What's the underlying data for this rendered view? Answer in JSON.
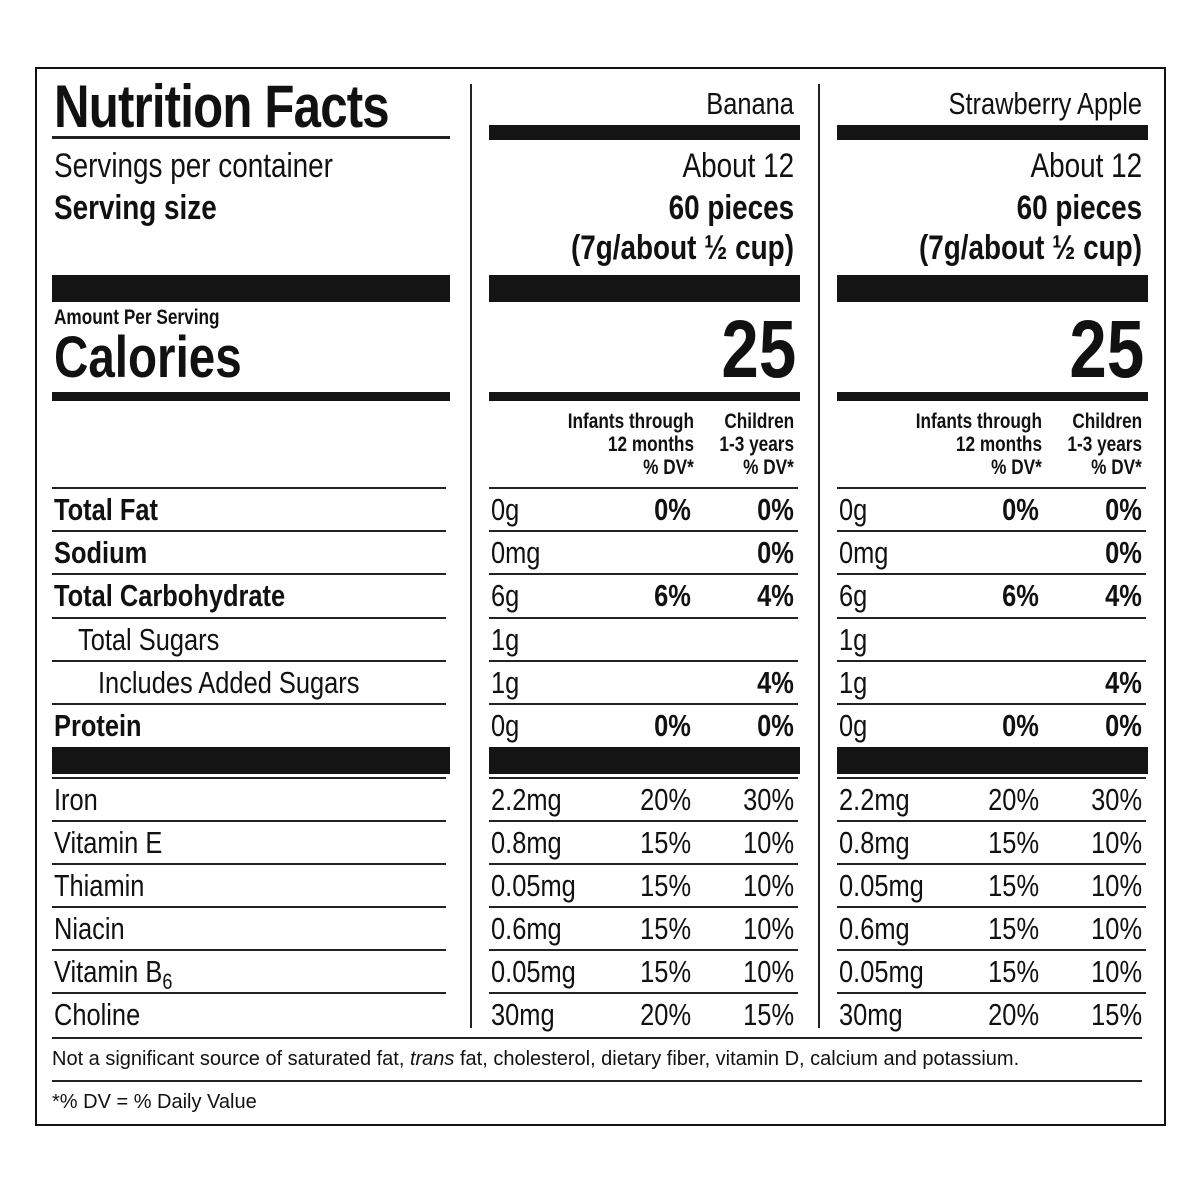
{
  "title": "Nutrition Facts",
  "servings_label": "Servings per container",
  "serving_size_label": "Serving size",
  "amount_per_serving": "Amount Per Serving",
  "calories_label": "Calories",
  "dv_headers": {
    "infants_line1": "Infants through",
    "infants_line2": "12 months",
    "children_line1": "Children",
    "children_line2": "1-3 years",
    "dv": "% DV*"
  },
  "nutrient_labels": {
    "total_fat": "Total Fat",
    "sodium": "Sodium",
    "total_carbohydrate": "Total Carbohydrate",
    "total_sugars": "Total Sugars",
    "added_sugars": "Includes Added Sugars",
    "protein": "Protein",
    "iron": "Iron",
    "vitamin_e": "Vitamin E",
    "thiamin": "Thiamin",
    "niacin": "Niacin",
    "vitamin_b6": "Vitamin B",
    "vitamin_b6_sub": "6",
    "choline": "Choline"
  },
  "products": [
    {
      "name": "Banana",
      "servings": "About 12",
      "serving_size_line1": "60 pieces",
      "serving_size_line2": "(7g/about ½ cup)",
      "calories": "25",
      "rows": {
        "total_fat": [
          "0g",
          "0%",
          "0%"
        ],
        "sodium": [
          "0mg",
          "",
          "0%"
        ],
        "total_carbohydrate": [
          "6g",
          "6%",
          "4%"
        ],
        "total_sugars": [
          "1g",
          "",
          ""
        ],
        "added_sugars": [
          "1g",
          "",
          "4%"
        ],
        "protein": [
          "0g",
          "0%",
          "0%"
        ],
        "iron": [
          "2.2mg",
          "20%",
          "30%"
        ],
        "vitamin_e": [
          "0.8mg",
          "15%",
          "10%"
        ],
        "thiamin": [
          "0.05mg",
          "15%",
          "10%"
        ],
        "niacin": [
          "0.6mg",
          "15%",
          "10%"
        ],
        "vitamin_b6": [
          "0.05mg",
          "15%",
          "10%"
        ],
        "choline": [
          "30mg",
          "20%",
          "15%"
        ]
      }
    },
    {
      "name": "Strawberry Apple",
      "servings": "About 12",
      "serving_size_line1": "60 pieces",
      "serving_size_line2": "(7g/about ½ cup)",
      "calories": "25",
      "rows": {
        "total_fat": [
          "0g",
          "0%",
          "0%"
        ],
        "sodium": [
          "0mg",
          "",
          "0%"
        ],
        "total_carbohydrate": [
          "6g",
          "6%",
          "4%"
        ],
        "total_sugars": [
          "1g",
          "",
          ""
        ],
        "added_sugars": [
          "1g",
          "",
          "4%"
        ],
        "protein": [
          "0g",
          "0%",
          "0%"
        ],
        "iron": [
          "2.2mg",
          "20%",
          "30%"
        ],
        "vitamin_e": [
          "0.8mg",
          "15%",
          "10%"
        ],
        "thiamin": [
          "0.05mg",
          "15%",
          "10%"
        ],
        "niacin": [
          "0.6mg",
          "15%",
          "10%"
        ],
        "vitamin_b6": [
          "0.05mg",
          "15%",
          "10%"
        ],
        "choline": [
          "30mg",
          "20%",
          "15%"
        ]
      }
    }
  ],
  "footnote_parts": {
    "before": "Not a significant source of saturated fat, ",
    "italic": "trans",
    "after": " fat, cholesterol, dietary fiber, vitamin D, calcium and potassium."
  },
  "dv_note": "*% DV = % Daily Value"
}
